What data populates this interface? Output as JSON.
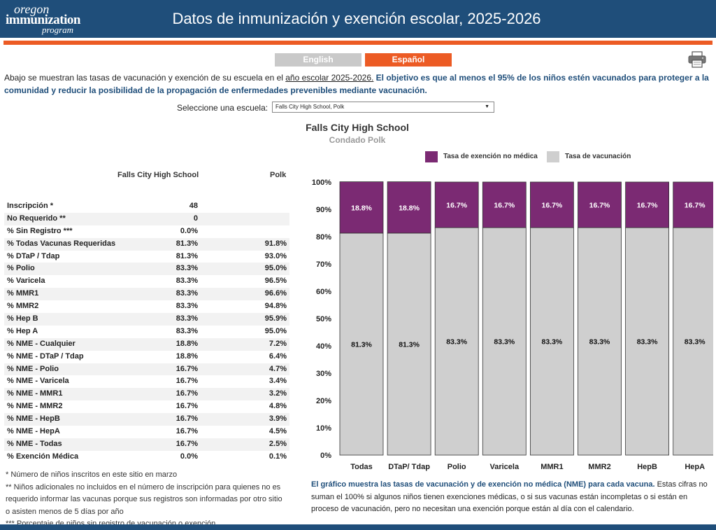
{
  "header": {
    "logo_line1": "oregon",
    "logo_line2": "immunization",
    "logo_line3": "program",
    "title": "Datos de inmunización y exención escolar, 2025-2026"
  },
  "lang": {
    "english": "English",
    "spanish": "Español"
  },
  "icons": {
    "print": "printer-icon"
  },
  "intro": {
    "part1": "Abajo se muestran las tasas de vacunación y exención de su escuela en el ",
    "part2": "año escolar 2025-2026.",
    "part3": " El objetivo es que al menos el 95% de los niños estén vacunados para proteger a la comunidad y reducir la posibilidad de la propagación de enfermedades prevenibles mediante vacunación."
  },
  "selector": {
    "label": "Seleccione una escuela:",
    "value": "Falls City High School, Polk"
  },
  "table": {
    "col1": "Falls City High School",
    "col2": "Polk",
    "rows": [
      {
        "label": "Inscripción *",
        "school": "48",
        "county": ""
      },
      {
        "label": "No Requerido **",
        "school": "0",
        "county": ""
      },
      {
        "label": "% Sin Registro ***",
        "school": "0.0%",
        "county": ""
      },
      {
        "label": "% Todas Vacunas Requeridas",
        "school": "81.3%",
        "county": "91.8%"
      },
      {
        "label": "% DTaP / Tdap",
        "school": "81.3%",
        "county": "93.0%"
      },
      {
        "label": "% Polio",
        "school": "83.3%",
        "county": "95.0%"
      },
      {
        "label": "% Varicela",
        "school": "83.3%",
        "county": "96.5%"
      },
      {
        "label": "% MMR1",
        "school": "83.3%",
        "county": "96.6%"
      },
      {
        "label": "% MMR2",
        "school": "83.3%",
        "county": "94.8%"
      },
      {
        "label": "% Hep B",
        "school": "83.3%",
        "county": "95.9%"
      },
      {
        "label": "% Hep A",
        "school": "83.3%",
        "county": "95.0%"
      },
      {
        "label": "% NME - Cualquier",
        "school": "18.8%",
        "county": "7.2%"
      },
      {
        "label": "% NME - DTaP / Tdap",
        "school": "18.8%",
        "county": "6.4%"
      },
      {
        "label": "% NME - Polio",
        "school": "16.7%",
        "county": "4.7%"
      },
      {
        "label": "% NME - Varicela",
        "school": "16.7%",
        "county": "3.4%"
      },
      {
        "label": "% NME - MMR1",
        "school": "16.7%",
        "county": "3.2%"
      },
      {
        "label": "% NME - MMR2",
        "school": "16.7%",
        "county": "4.8%"
      },
      {
        "label": "% NME - HepB",
        "school": "16.7%",
        "county": "3.9%"
      },
      {
        "label": "% NME - HepA",
        "school": "16.7%",
        "county": "4.5%"
      },
      {
        "label": "% NME - Todas",
        "school": "16.7%",
        "county": "2.5%"
      },
      {
        "label": "% Exención Médica",
        "school": "0.0%",
        "county": "0.1%"
      }
    ]
  },
  "notes": [
    "* Número de niños inscritos en este sitio en marzo",
    "** Niños adicionales no incluidos en el número de inscripción para quienes no es requerido informar las vacunas porque sus registros son informadas por otro sitio o asisten menos de 5 días por año",
    "*** Porcentaje de niños sin registro de vacunación o exención"
  ],
  "description": {
    "bold": "El gráfico muestra las tasas de vacunación y de exención no médica (NME) para cada vacuna.",
    "rest": " Estas cifras no suman el 100% si algunos niños tienen exenciones médicas, o si sus vacunas están incompletas o si están en proceso de vacunación, pero no necesitan una exención porque están al día con el calendario."
  },
  "chart_data": {
    "type": "bar",
    "stacked": true,
    "title": "Falls City High School",
    "subtitle": "Condado Polk",
    "categories": [
      "Todas",
      "DTaP/ Tdap",
      "Polio",
      "Varicela",
      "MMR1",
      "MMR2",
      "HepB",
      "HepA"
    ],
    "series": [
      {
        "name": "Tasa de vacunación",
        "color": "#cfcfcf",
        "values": [
          81.3,
          81.3,
          83.3,
          83.3,
          83.3,
          83.3,
          83.3,
          83.3
        ],
        "labels": [
          "81.3%",
          "81.3%",
          "83.3%",
          "83.3%",
          "83.3%",
          "83.3%",
          "83.3%",
          "83.3%"
        ]
      },
      {
        "name": "Tasa de exención no médica",
        "color": "#7b2a73",
        "values": [
          18.8,
          18.8,
          16.7,
          16.7,
          16.7,
          16.7,
          16.7,
          16.7
        ],
        "labels": [
          "18.8%",
          "18.8%",
          "16.7%",
          "16.7%",
          "16.7%",
          "16.7%",
          "16.7%",
          "16.7%"
        ]
      }
    ],
    "ylim": [
      0,
      100
    ],
    "yticks": [
      "0%",
      "10%",
      "20%",
      "30%",
      "40%",
      "50%",
      "60%",
      "70%",
      "80%",
      "90%",
      "100%"
    ],
    "legend_position": "top-right"
  }
}
